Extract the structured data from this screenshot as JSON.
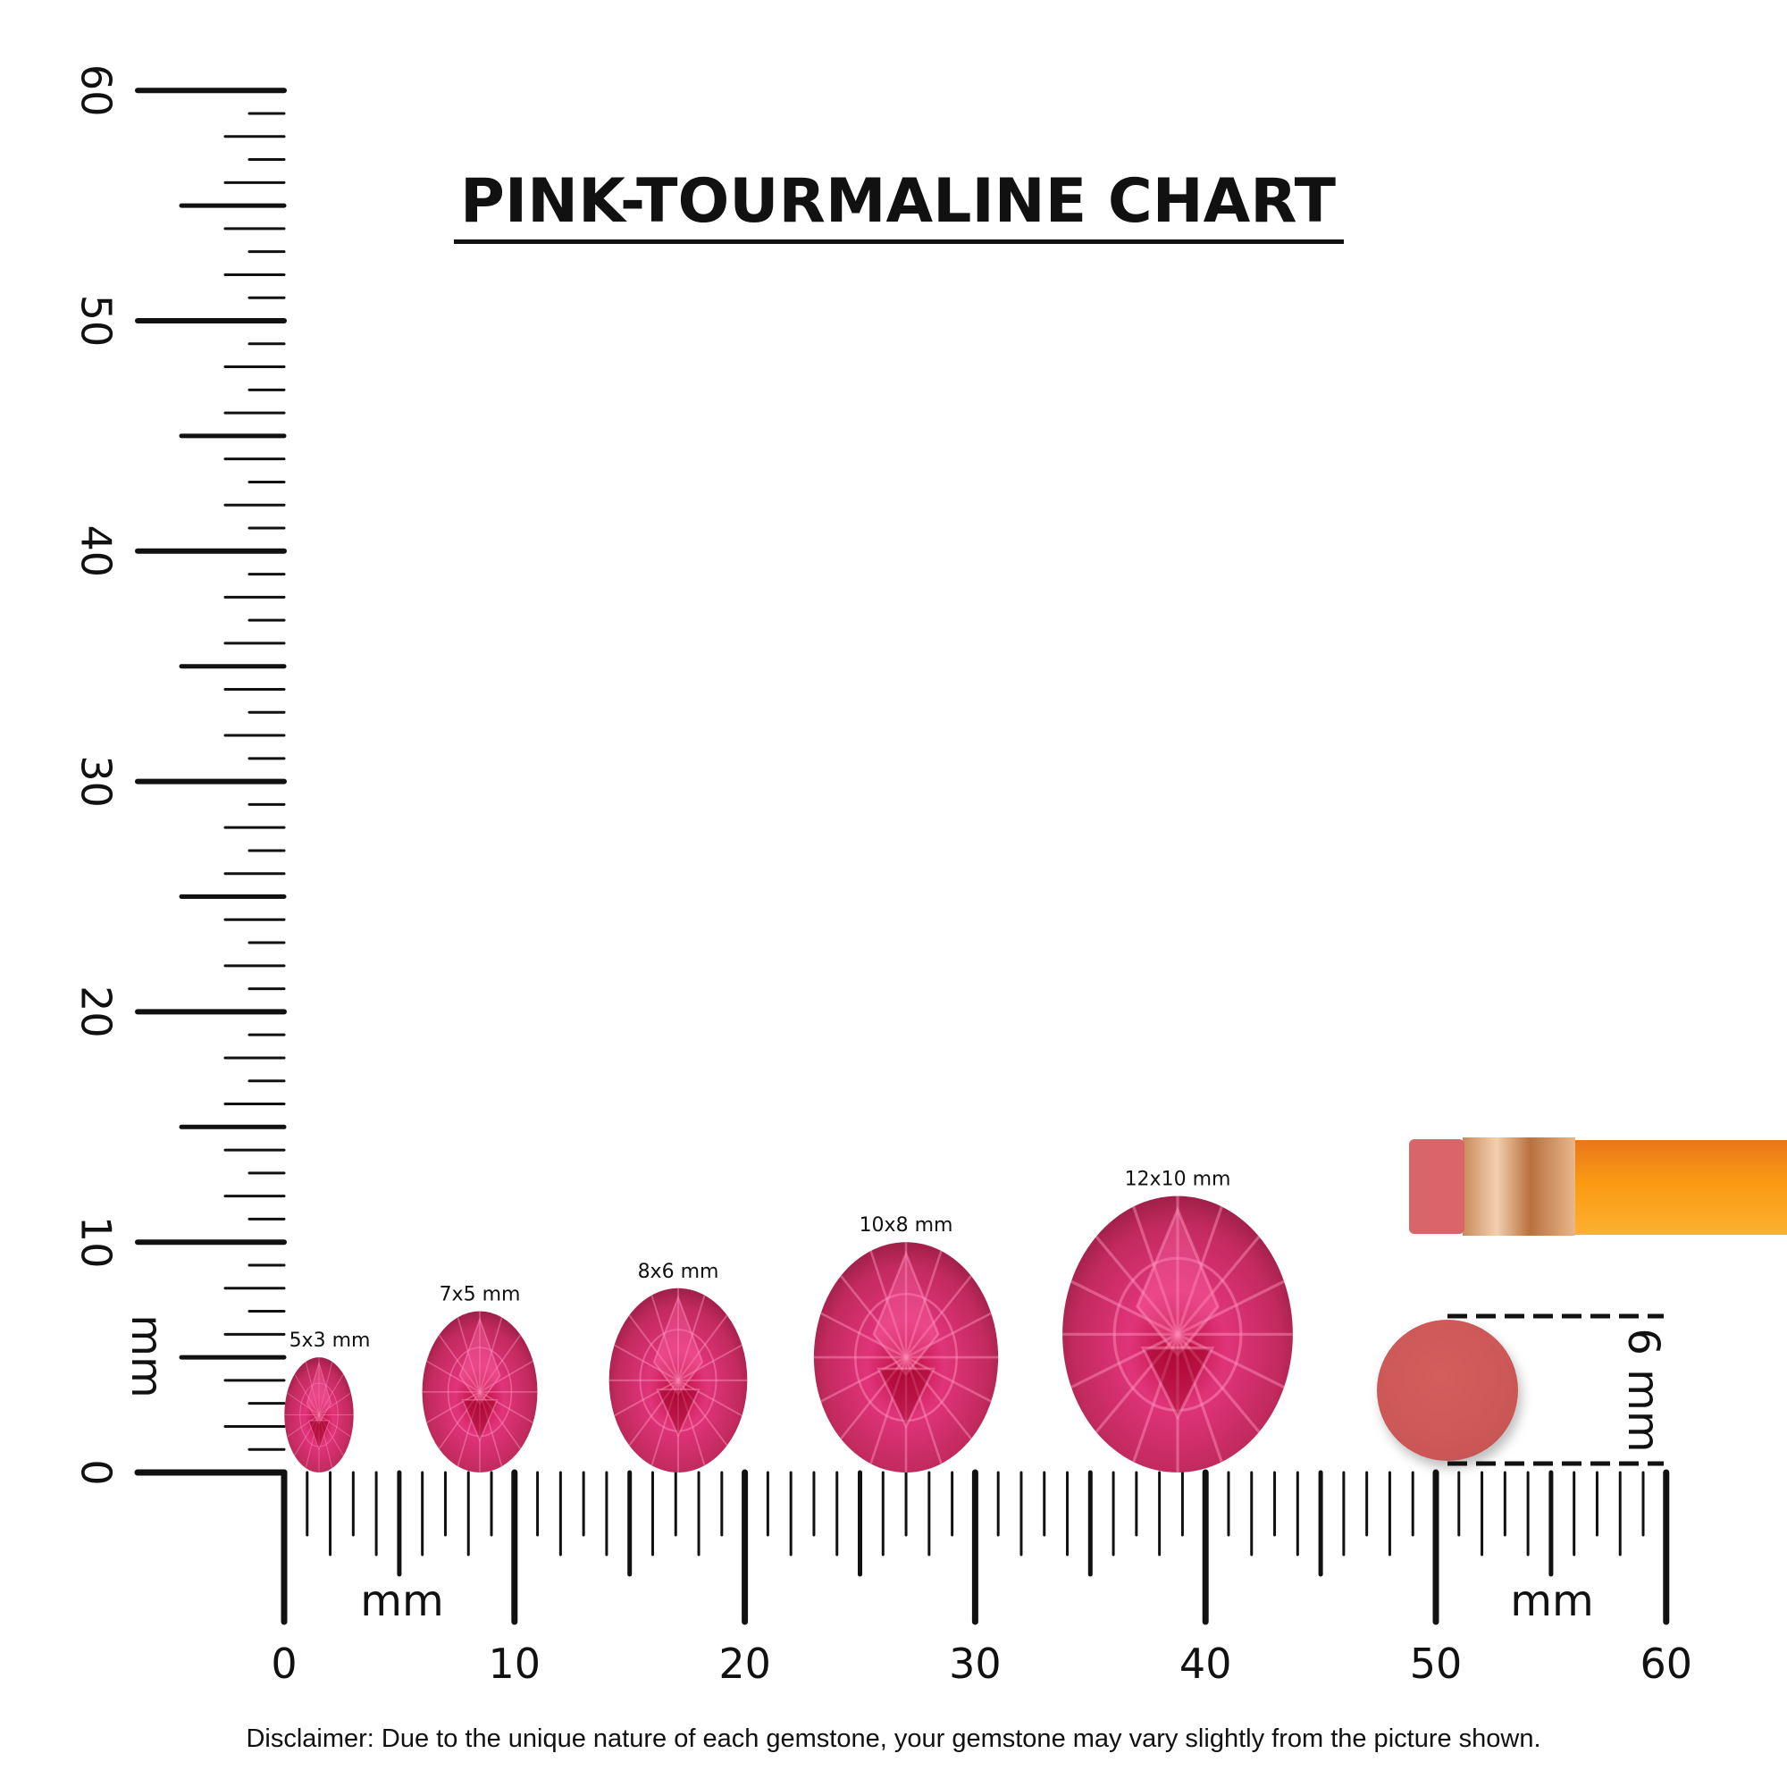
{
  "title": "PINK-TOURMALINE CHART",
  "unit_label": "mm",
  "x_ruler": {
    "labels": [
      "0",
      "10",
      "20",
      "30",
      "40",
      "50",
      "60"
    ],
    "range_mm": [
      0,
      60
    ]
  },
  "y_ruler": {
    "labels": [
      "0",
      "10",
      "20",
      "30",
      "40",
      "50",
      "60"
    ],
    "range_mm": [
      0,
      60
    ]
  },
  "gems": [
    {
      "label": "5x3 mm",
      "length_mm": 5,
      "width_mm": 3
    },
    {
      "label": "7x5 mm",
      "length_mm": 7,
      "width_mm": 5
    },
    {
      "label": "8x6 mm",
      "length_mm": 8,
      "width_mm": 6
    },
    {
      "label": "10x8 mm",
      "length_mm": 10,
      "width_mm": 8
    },
    {
      "label": "12x10 mm",
      "length_mm": 12,
      "width_mm": 10
    }
  ],
  "eraser_reference": {
    "label": "6 mm",
    "diameter_mm": 6
  },
  "colors": {
    "gem": "#d02a62",
    "gem_dark": "#9c0f3a",
    "eraser": "#d05a5a",
    "pencil": "#f7941d",
    "ferrule": "#d9a070"
  },
  "disclaimer": "Disclaimer: Due to the unique nature of each gemstone, your gemstone may vary slightly from the picture shown."
}
